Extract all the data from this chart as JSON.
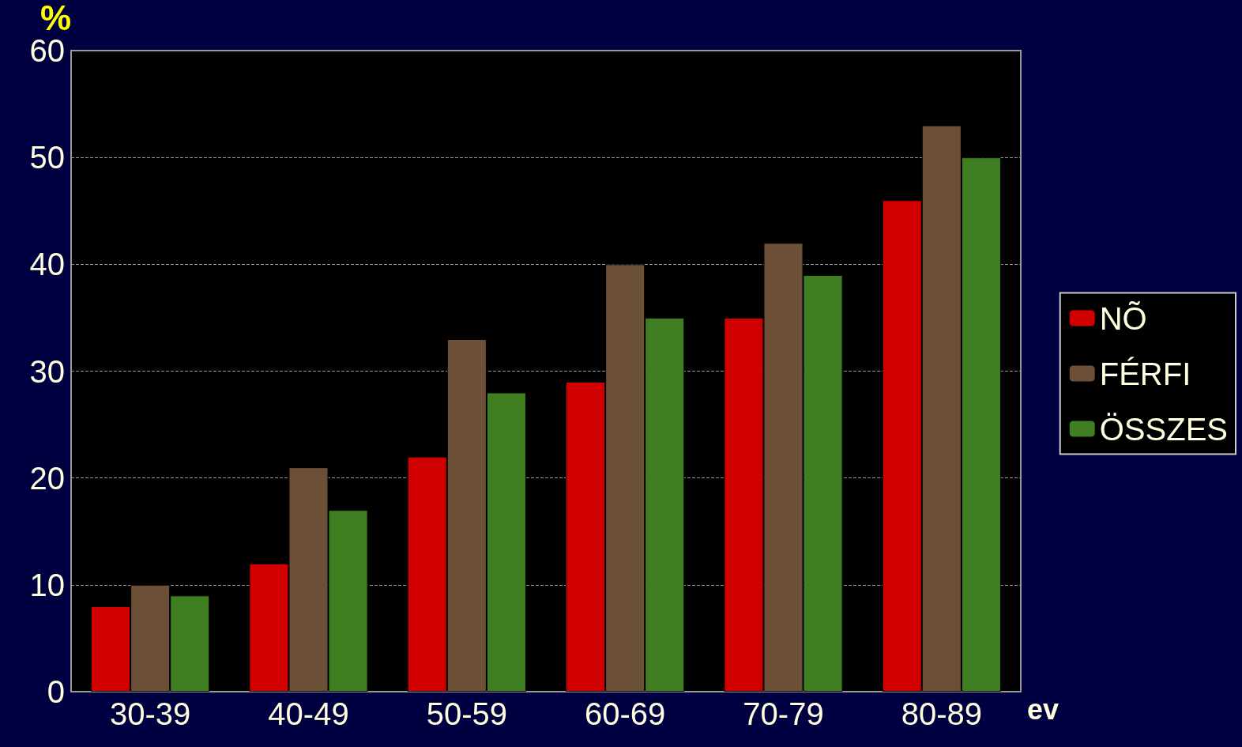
{
  "chart_data": {
    "type": "bar",
    "ylabel": "%",
    "xlabel": "ev",
    "categories": [
      "30-39",
      "40-49",
      "50-59",
      "60-69",
      "70-79",
      "80-89"
    ],
    "series": [
      {
        "name": "NÕ",
        "color": "#d10000",
        "values": [
          8,
          12,
          22,
          29,
          35,
          46
        ]
      },
      {
        "name": "FÉRFI",
        "color": "#6b4f37",
        "values": [
          10,
          21,
          33,
          40,
          42,
          53
        ]
      },
      {
        "name": "ÖSSZES",
        "color": "#3f7f22",
        "values": [
          9,
          17,
          28,
          35,
          39,
          50
        ]
      }
    ],
    "ylim": [
      0,
      60
    ],
    "yticks": [
      0,
      10,
      20,
      30,
      40,
      50,
      60
    ],
    "grid": "y",
    "legend": "right"
  }
}
